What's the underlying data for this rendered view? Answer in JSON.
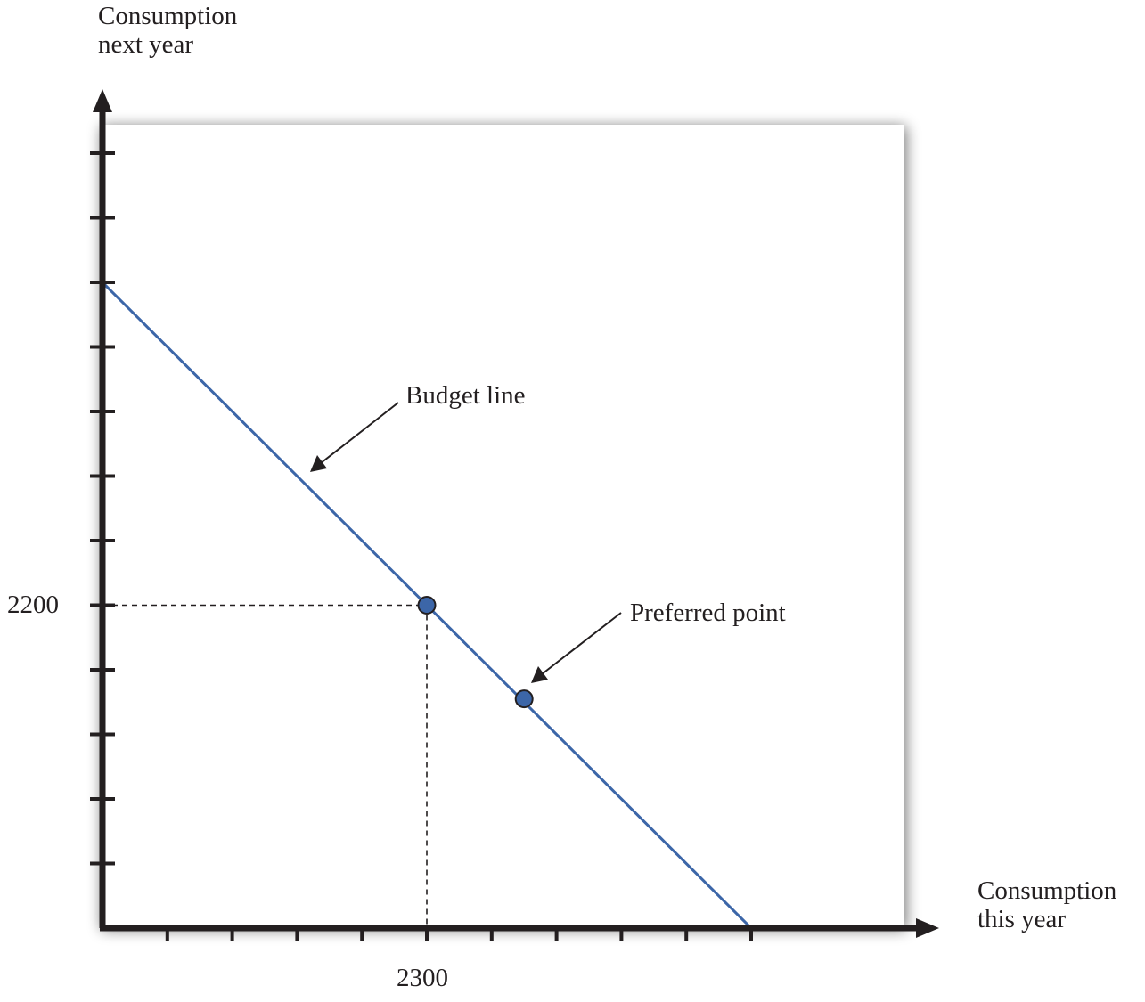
{
  "chart_data": {
    "type": "line",
    "xlabel": [
      "Consumption",
      "this year"
    ],
    "ylabel": [
      "Consumption",
      "next year"
    ],
    "x_tick_count": 10,
    "y_tick_count": 12,
    "labeled_ticks": {
      "x": {
        "index": 5,
        "label": "2300"
      },
      "y": {
        "index": 5,
        "label": "2200"
      }
    },
    "budget_line": {
      "name": "Budget line",
      "from": {
        "x_tick": 0,
        "y_tick": 10
      },
      "to": {
        "x_tick": 10,
        "y_tick": 0
      },
      "color": "#3c66a8"
    },
    "points": [
      {
        "x_tick": 5,
        "y_tick": 5,
        "guides": true
      },
      {
        "x_tick": 6.5,
        "y_tick": 3.55,
        "guides": false
      }
    ],
    "point_color": "#3c66a8",
    "annotations": [
      {
        "text": "Budget line",
        "target": "budget_line"
      },
      {
        "text": "Preferred point",
        "target": "points.1"
      }
    ],
    "grid": false,
    "legend": "none"
  }
}
